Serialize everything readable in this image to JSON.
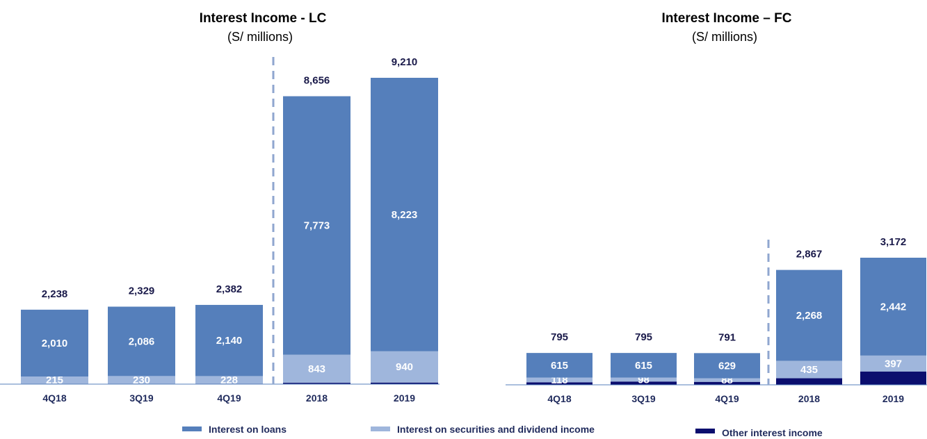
{
  "colors": {
    "loans": "#557fbb",
    "securities": "#9fb6dc",
    "other": "#0b0e6e",
    "divider": "#8fa6cf",
    "text": "#1f2a5c"
  },
  "legend": {
    "loans": "Interest on loans",
    "securities": "Interest on securities and dividend income",
    "other": "Other interest income"
  },
  "chart_data": [
    {
      "type": "bar",
      "stacked": true,
      "title": "Interest Income - LC",
      "subtitle": "(S/ millions)",
      "categories": [
        "4Q18",
        "3Q19",
        "4Q19",
        "2018",
        "2019"
      ],
      "series": [
        {
          "name": "Other interest income",
          "values": [
            13,
            13,
            14,
            40,
            47
          ],
          "labels": [
            "",
            "",
            "",
            "",
            ""
          ]
        },
        {
          "name": "Interest on securities and dividend income",
          "values": [
            215,
            230,
            228,
            843,
            940
          ],
          "labels": [
            "215",
            "230",
            "228",
            "843",
            "940"
          ]
        },
        {
          "name": "Interest on loans",
          "values": [
            2010,
            2086,
            2140,
            7773,
            8223
          ],
          "labels": [
            "2,010",
            "2,086",
            "2,140",
            "7,773",
            "8,223"
          ]
        }
      ],
      "totals": [
        "2,238",
        "2,329",
        "2,382",
        "8,656",
        "9,210"
      ],
      "total_values": [
        2238,
        2329,
        2382,
        8656,
        9210
      ],
      "ylim": [
        0,
        9210
      ],
      "divider_after_index": 2
    },
    {
      "type": "bar",
      "stacked": true,
      "title": "Interest Income – FC",
      "subtitle": "(S/ millions)",
      "categories": [
        "4Q18",
        "3Q19",
        "4Q19",
        "2018",
        "2019"
      ],
      "series": [
        {
          "name": "Other interest income",
          "values": [
            62,
            82,
            74,
            164,
            333
          ],
          "labels": [
            "",
            "",
            "",
            "",
            ""
          ]
        },
        {
          "name": "Interest on securities and dividend income",
          "values": [
            118,
            98,
            88,
            435,
            397
          ],
          "labels": [
            "118",
            "98",
            "88",
            "435",
            "397"
          ]
        },
        {
          "name": "Interest on loans",
          "values": [
            615,
            615,
            629,
            2268,
            2442
          ],
          "labels": [
            "615",
            "615",
            "629",
            "2,268",
            "2,442"
          ]
        }
      ],
      "totals": [
        "795",
        "795",
        "791",
        "2,867",
        "3,172"
      ],
      "total_values": [
        795,
        795,
        791,
        2867,
        3172
      ],
      "ylim": [
        0,
        3172
      ],
      "divider_after_index": 2
    }
  ]
}
